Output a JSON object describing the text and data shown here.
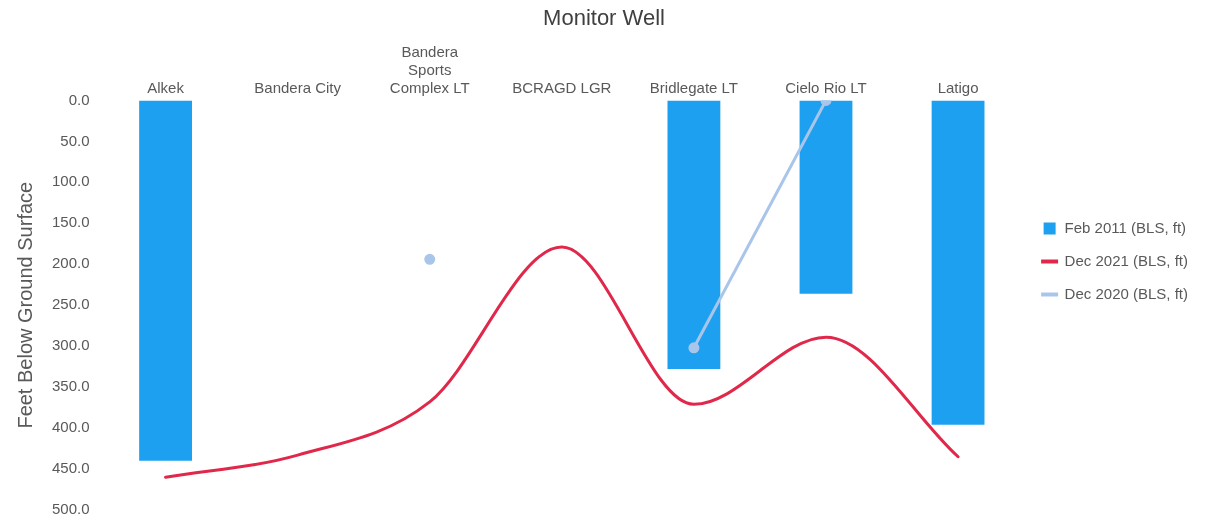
{
  "chart_data": {
    "type": "bar",
    "title": "Monitor Well",
    "ylabel": "Feet Below Ground Surface",
    "categories": [
      "Alkek",
      "Bandera City",
      "Bandera Sports Complex LT",
      "BCRAGD LGR",
      "Bridlegate LT",
      "Cielo Rio LT",
      "Latigo"
    ],
    "series": [
      {
        "name": "Feb 2011 (BLS, ft)",
        "color": "#1ea0f0",
        "values": [
          440,
          null,
          null,
          null,
          328,
          236,
          396
        ]
      },
      {
        "name": "Dec 2021 (BLS, ft)",
        "type": "line",
        "color": "#e0284a",
        "marker": "none",
        "values": [
          460,
          433,
          368,
          179,
          371,
          289,
          435
        ]
      },
      {
        "name": "Dec 2020 (BLS, ft)",
        "type": "line",
        "color": "#a9c6ea",
        "marker": "circle",
        "values": [
          null,
          null,
          194,
          null,
          302,
          0,
          null
        ]
      }
    ],
    "ylim": [
      500,
      0
    ],
    "yticks": [
      {
        "value": 0,
        "label": "0.0"
      },
      {
        "value": 50,
        "label": "50.0"
      },
      {
        "value": 100,
        "label": "100.0"
      },
      {
        "value": 150,
        "label": "150.0"
      },
      {
        "value": 200,
        "label": "200.0"
      },
      {
        "value": 250,
        "label": "250.0"
      },
      {
        "value": 300,
        "label": "300.0"
      },
      {
        "value": 350,
        "label": "350.0"
      },
      {
        "value": 400,
        "label": "400.0"
      },
      {
        "value": 450,
        "label": "450.0"
      },
      {
        "value": 500,
        "label": "500.0"
      }
    ],
    "grid": false,
    "legend": "right"
  }
}
